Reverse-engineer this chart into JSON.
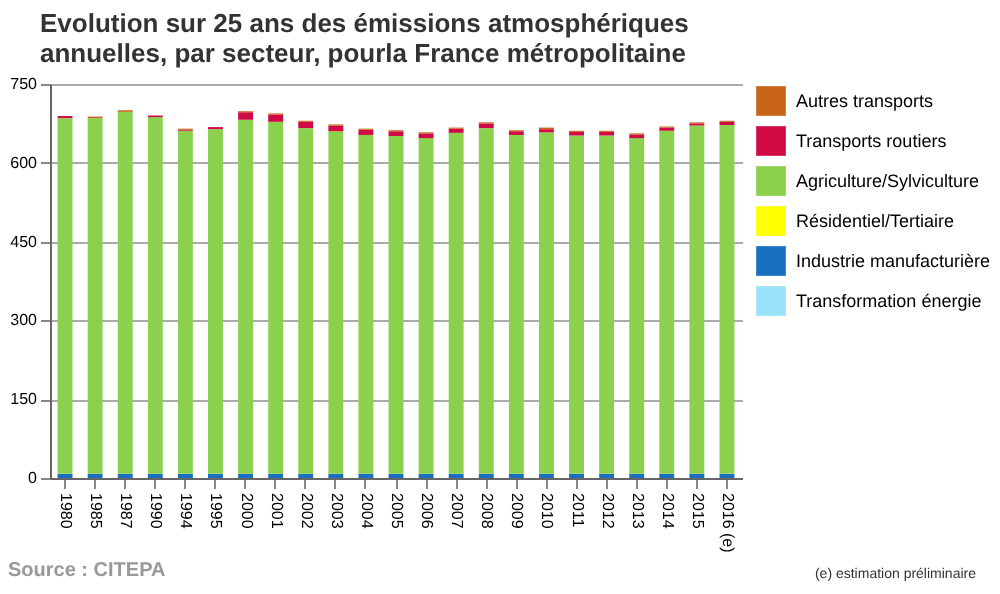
{
  "chart_data": {
    "type": "bar",
    "title": "Evolution sur 25 ans des émissions atmosphériques annuelles, par secteur, pourla France métropolitaine",
    "categories": [
      "1980",
      "1985",
      "1987",
      "1990",
      "1994",
      "1995",
      "2000",
      "2001",
      "2002",
      "2003",
      "2004",
      "2005",
      "2006",
      "2007",
      "2008",
      "2009",
      "2010",
      "2011",
      "2012",
      "2013",
      "2014",
      "2015",
      "2016 (e)"
    ],
    "stacked": true,
    "ylim": [
      0,
      750
    ],
    "yticks": [
      0,
      150,
      300,
      450,
      600,
      750
    ],
    "grid": "y",
    "legend": "right",
    "series": [
      {
        "name": "Transformation énergie",
        "color": "#99e0f8",
        "values": [
          0,
          0,
          0,
          0,
          0,
          0,
          0,
          0,
          0,
          0,
          0,
          0,
          0,
          0,
          0,
          0,
          0,
          0,
          0,
          0,
          0,
          0,
          0
        ]
      },
      {
        "name": "Industrie manufacturière",
        "color": "#1a6fc0",
        "values": [
          8,
          8,
          8,
          8,
          8,
          8,
          8,
          8,
          8,
          8,
          8,
          8,
          8,
          8,
          8,
          8,
          8,
          8,
          8,
          8,
          8,
          8,
          8
        ]
      },
      {
        "name": "Résidentiel/Tertiaire",
        "color": "#ffff00",
        "values": [
          0,
          0,
          0,
          0,
          0,
          0,
          0,
          0,
          0,
          0,
          0,
          0,
          0,
          0,
          0,
          0,
          0,
          0,
          0,
          0,
          0,
          0,
          0
        ]
      },
      {
        "name": "Agriculture/Sylviculture",
        "color": "#8cd14e",
        "values": [
          677,
          677,
          689,
          679,
          653,
          656,
          674,
          670,
          658,
          652,
          645,
          643,
          639,
          649,
          658,
          645,
          650,
          644,
          644,
          639,
          653,
          663,
          664
        ]
      },
      {
        "name": "Transports routiers",
        "color": "#d00a45",
        "values": [
          4,
          0,
          0,
          3,
          2,
          4,
          14,
          14,
          12,
          11,
          10,
          9,
          9,
          8,
          9,
          7,
          6,
          7,
          7,
          7,
          6,
          4,
          6
        ]
      },
      {
        "name": "Autres transports",
        "color": "#c8651a",
        "values": [
          0,
          3,
          3,
          0,
          2,
          0,
          2,
          2,
          2,
          2,
          2,
          2,
          2,
          2,
          2,
          2,
          3,
          2,
          2,
          2,
          2,
          2,
          2
        ]
      }
    ],
    "annotations": [
      "Source : CITEPA",
      "(e) estimation préliminaire"
    ]
  }
}
